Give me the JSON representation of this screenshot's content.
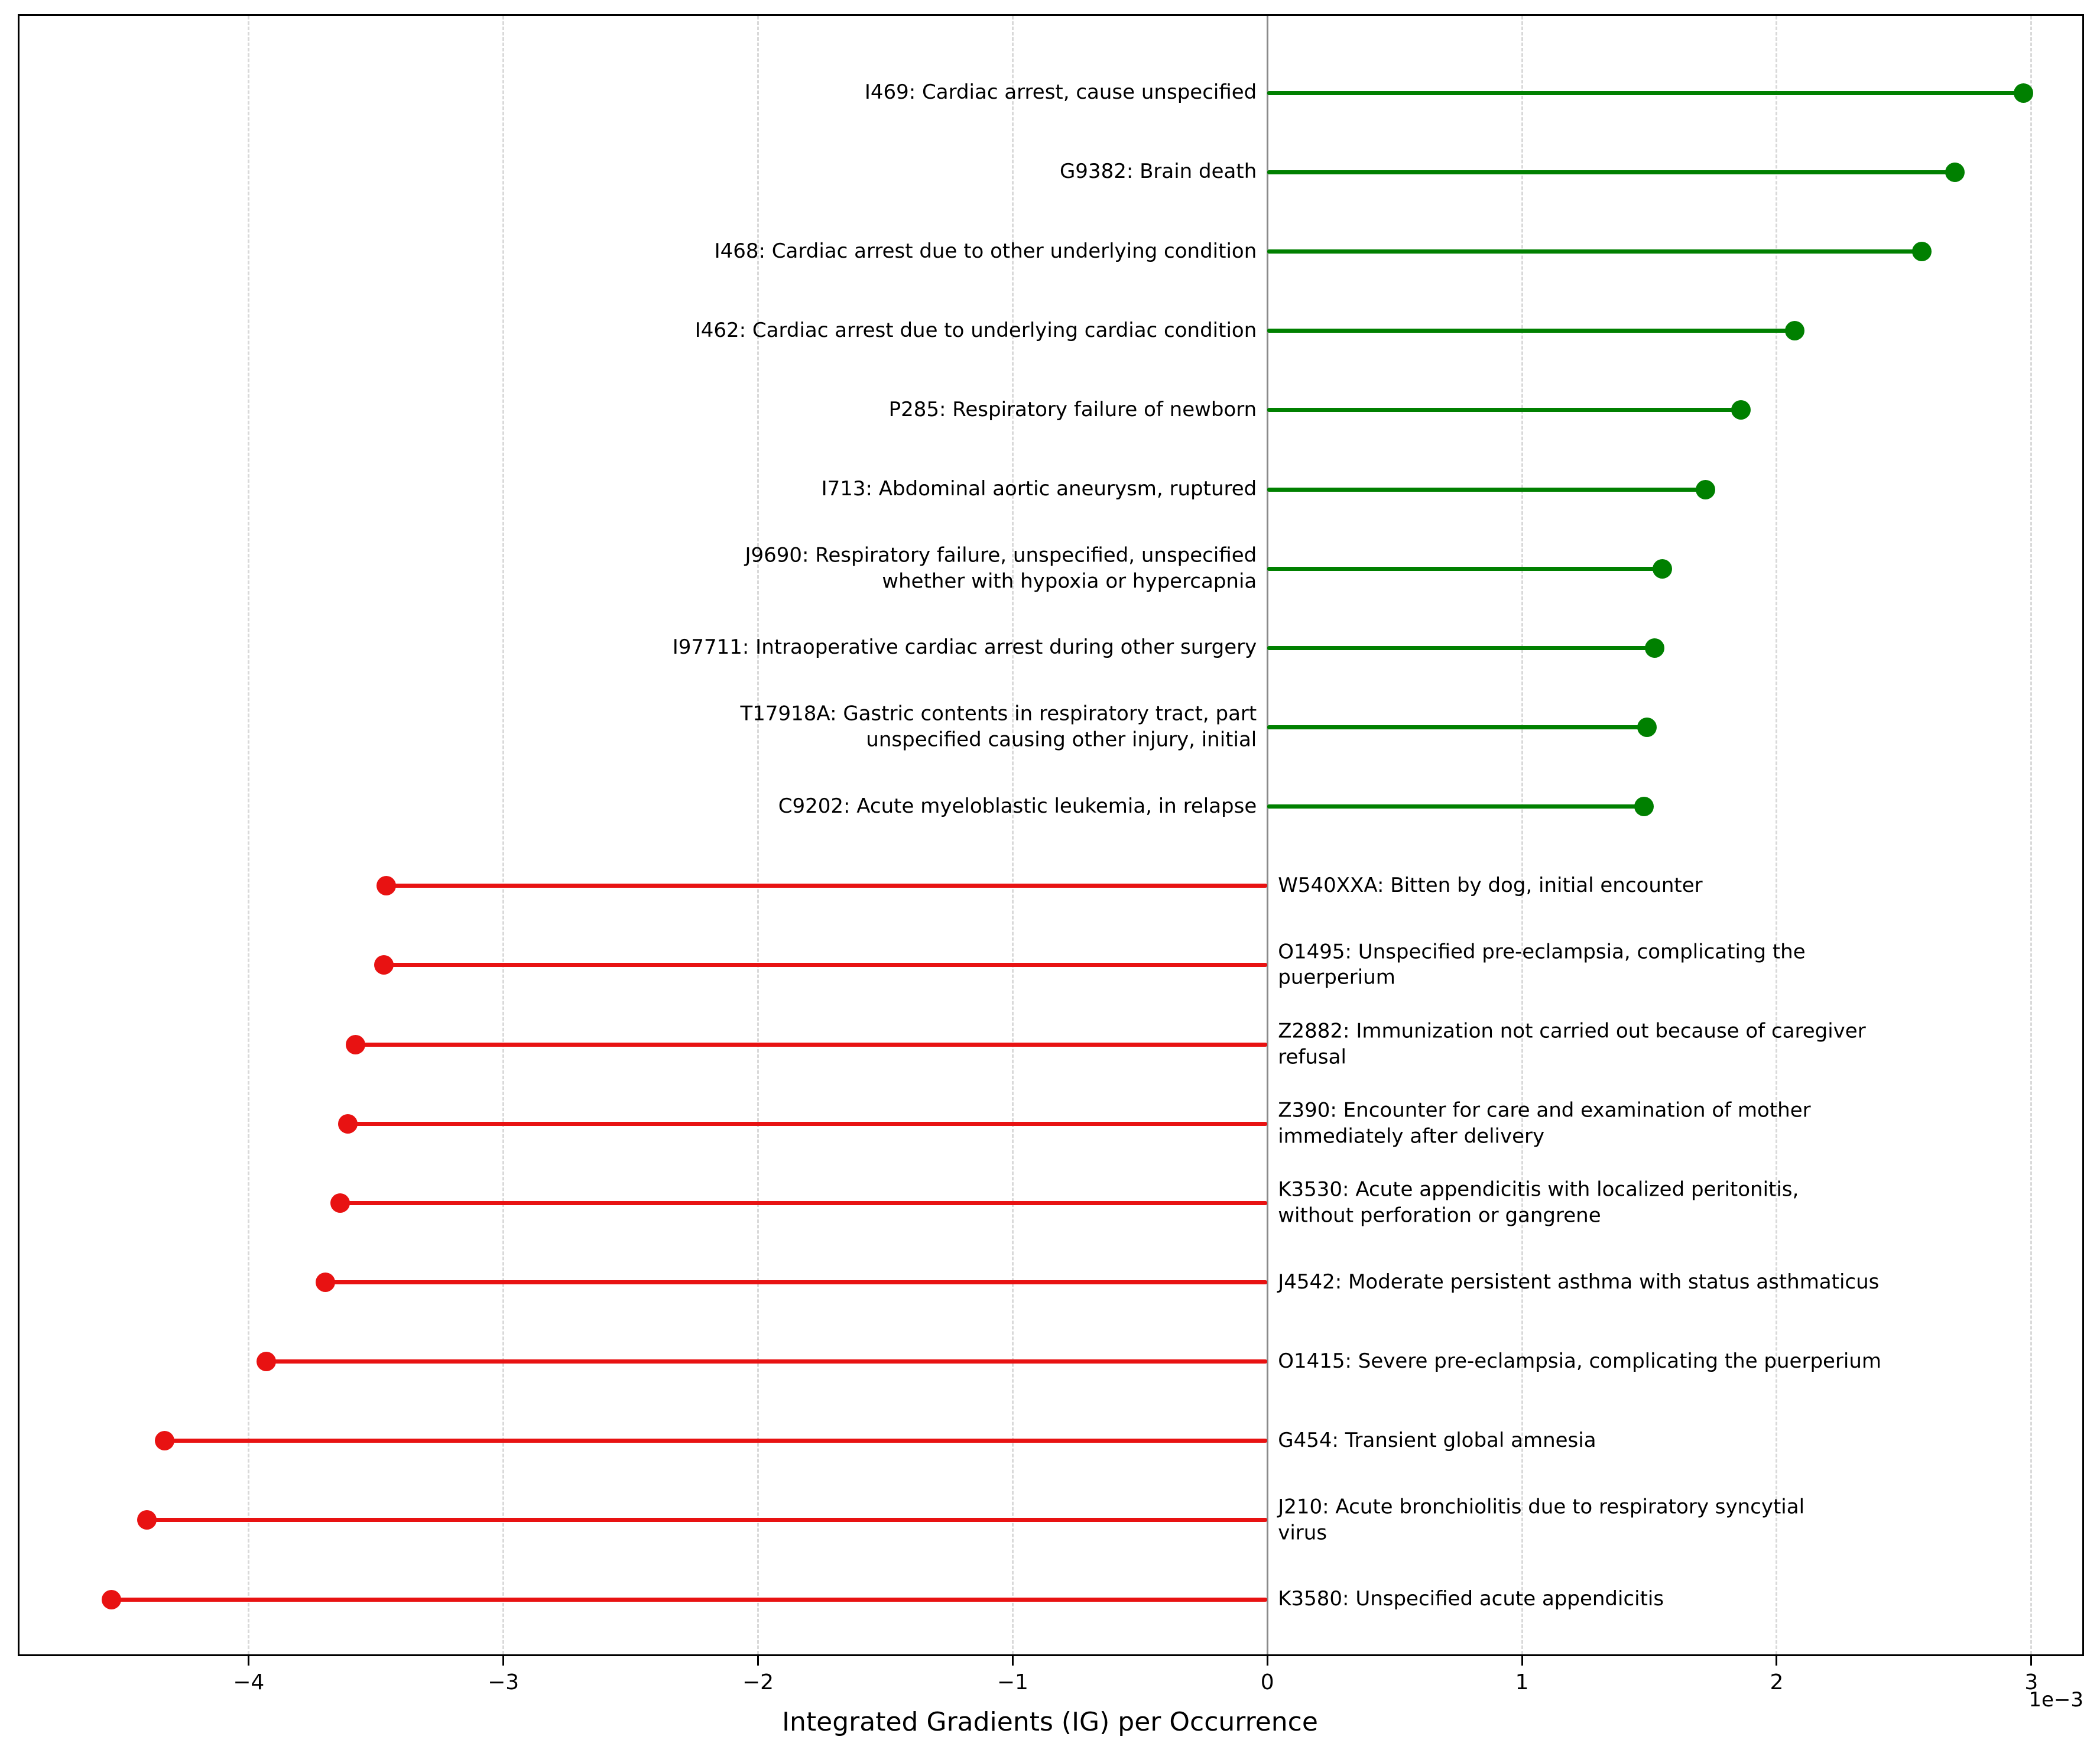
{
  "chart_data": {
    "type": "bar",
    "subtype": "lollipop-horizontal",
    "title": "",
    "xlabel": "Integrated Gradients (IG) per Occurrence",
    "ylabel": "",
    "offset_text": "1e−3",
    "value_scale": "1e-3",
    "xlim": [
      -4.9,
      3.2
    ],
    "grid": "vertical-dashed",
    "legend": "none",
    "colors": {
      "positive": "#008000",
      "negative": "#e81212",
      "zero_line": "#8a8a8a",
      "grid": "#d9d9d9"
    },
    "xticks": [
      {
        "value": -4,
        "label": "−4"
      },
      {
        "value": -3,
        "label": "−3"
      },
      {
        "value": -2,
        "label": "−2"
      },
      {
        "value": -1,
        "label": "−1"
      },
      {
        "value": 0,
        "label": "0"
      },
      {
        "value": 1,
        "label": "1"
      },
      {
        "value": 2,
        "label": "2"
      },
      {
        "value": 3,
        "label": "3"
      }
    ],
    "items": [
      {
        "label": "I469: Cardiac arrest, cause unspecified",
        "value": 2.97,
        "direction": "positive"
      },
      {
        "label": "G9382: Brain death",
        "value": 2.7,
        "direction": "positive"
      },
      {
        "label": "I468: Cardiac arrest due to other underlying condition",
        "value": 2.57,
        "direction": "positive"
      },
      {
        "label": "I462: Cardiac arrest due to underlying cardiac condition",
        "value": 2.07,
        "direction": "positive"
      },
      {
        "label": "P285: Respiratory failure of newborn",
        "value": 1.86,
        "direction": "positive"
      },
      {
        "label": "I713: Abdominal aortic aneurysm, ruptured",
        "value": 1.72,
        "direction": "positive"
      },
      {
        "label": "J9690: Respiratory failure, unspecified, unspecified\nwhether with hypoxia or hypercapnia",
        "value": 1.55,
        "direction": "positive"
      },
      {
        "label": "I97711: Intraoperative cardiac arrest during other surgery",
        "value": 1.52,
        "direction": "positive"
      },
      {
        "label": "T17918A: Gastric contents in respiratory tract, part\nunspecified causing other injury, initial",
        "value": 1.49,
        "direction": "positive"
      },
      {
        "label": "C9202: Acute myeloblastic leukemia, in relapse",
        "value": 1.48,
        "direction": "positive"
      },
      {
        "label": "W540XXA: Bitten by dog, initial encounter",
        "value": -3.46,
        "direction": "negative"
      },
      {
        "label": "O1495: Unspecified pre-eclampsia, complicating the\npuerperium",
        "value": -3.47,
        "direction": "negative"
      },
      {
        "label": "Z2882: Immunization not carried out because of caregiver\nrefusal",
        "value": -3.58,
        "direction": "negative"
      },
      {
        "label": "Z390: Encounter for care and examination of mother\nimmediately after delivery",
        "value": -3.61,
        "direction": "negative"
      },
      {
        "label": "K3530: Acute appendicitis with localized peritonitis,\nwithout perforation or gangrene",
        "value": -3.64,
        "direction": "negative"
      },
      {
        "label": "J4542: Moderate persistent asthma with status asthmaticus",
        "value": -3.7,
        "direction": "negative"
      },
      {
        "label": "O1415: Severe pre-eclampsia, complicating the puerperium",
        "value": -3.93,
        "direction": "negative"
      },
      {
        "label": "G454: Transient global amnesia",
        "value": -4.33,
        "direction": "negative"
      },
      {
        "label": "J210: Acute bronchiolitis due to respiratory syncytial\nvirus",
        "value": -4.4,
        "direction": "negative"
      },
      {
        "label": "K3580: Unspecified acute appendicitis",
        "value": -4.54,
        "direction": "negative"
      }
    ]
  }
}
